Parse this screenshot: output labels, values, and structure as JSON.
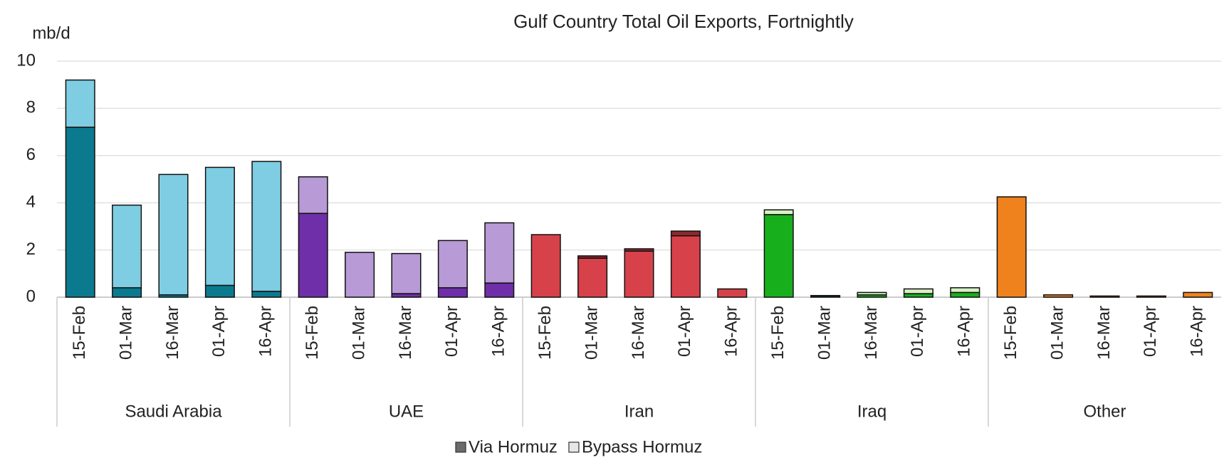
{
  "chart_data": {
    "type": "bar",
    "stacked": true,
    "title": "Gulf Country Total Oil Exports, Fortnightly",
    "y_label": "mb/d",
    "ylim": [
      0,
      10
    ],
    "yticks": [
      0,
      2,
      4,
      6,
      8,
      10
    ],
    "grid": true,
    "legend": "bottom",
    "groups": [
      {
        "name": "Saudi Arabia",
        "categories": [
          "15-Feb",
          "01-Mar",
          "16-Mar",
          "01-Apr",
          "16-Apr"
        ],
        "colors": [
          "#0b7a8e",
          "#7ecde2"
        ]
      },
      {
        "name": "UAE",
        "categories": [
          "15-Feb",
          "01-Mar",
          "16-Mar",
          "01-Apr",
          "16-Apr"
        ],
        "colors": [
          "#6f2fa8",
          "#b79ad6"
        ]
      },
      {
        "name": "Iran",
        "categories": [
          "15-Feb",
          "01-Mar",
          "16-Mar",
          "01-Apr",
          "16-Apr"
        ],
        "colors": [
          "#d7424a",
          "#8a2a2e"
        ]
      },
      {
        "name": "Iraq",
        "categories": [
          "15-Feb",
          "01-Mar",
          "16-Mar",
          "01-Apr",
          "16-Apr"
        ],
        "colors": [
          "#17b01c",
          "#d9efc4"
        ]
      },
      {
        "name": "Other",
        "categories": [
          "15-Feb",
          "01-Mar",
          "16-Mar",
          "01-Apr",
          "16-Apr"
        ],
        "colors": [
          "#f0821e",
          "#f7c08a"
        ]
      }
    ],
    "series": [
      {
        "name": "Via Hormuz",
        "color": "#6b6b6b",
        "values": [
          7.2,
          0.4,
          0.1,
          0.5,
          0.25,
          3.55,
          0,
          0.15,
          0.4,
          0.6,
          2.65,
          1.65,
          1.95,
          2.6,
          0.35,
          3.5,
          0.05,
          0.1,
          0.15,
          0.2,
          4.25,
          0.1,
          0.05,
          0.05,
          0.2
        ]
      },
      {
        "name": "Bypass Hormuz",
        "color": "#e6e6e6",
        "values": [
          2.0,
          3.5,
          5.1,
          5.0,
          5.5,
          1.55,
          1.9,
          1.7,
          2.0,
          2.55,
          0,
          0.1,
          0.1,
          0.2,
          0,
          0.2,
          0.02,
          0.1,
          0.2,
          0.2,
          0,
          0,
          0,
          0,
          0
        ]
      }
    ]
  }
}
